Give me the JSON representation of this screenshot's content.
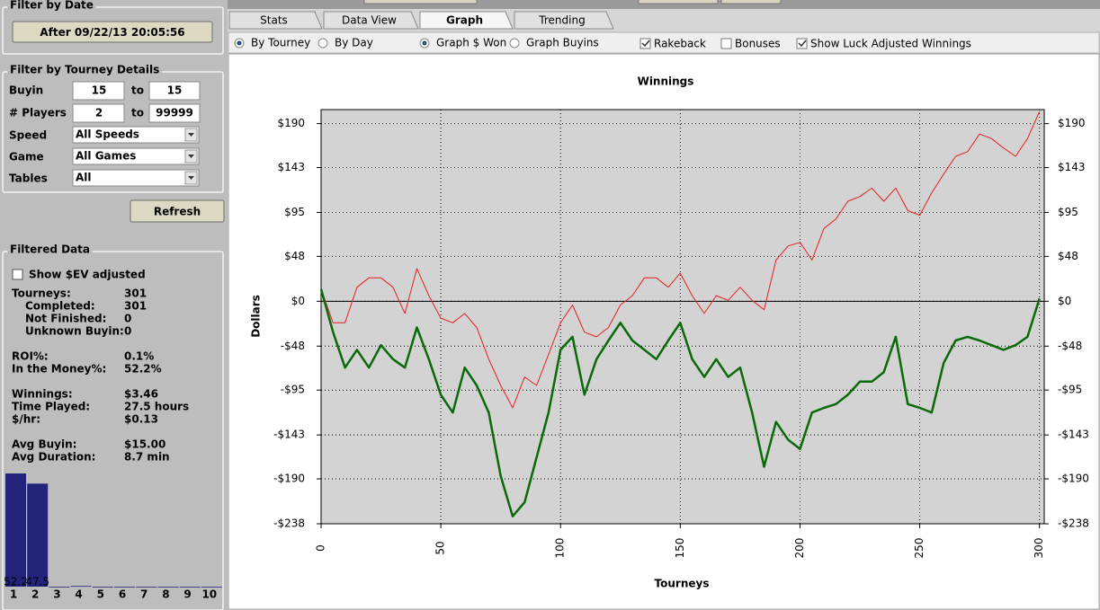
{
  "filter_by_date": {
    "title": "Filter by Date",
    "button": "After 09/22/13 20:05:56"
  },
  "filter_by_tourney": {
    "title": "Filter by Tourney Details",
    "ranges": [
      {
        "label": "Buyin",
        "from": "15",
        "to_label": "to",
        "to": "15"
      },
      {
        "label": "# Players",
        "from": "2",
        "to_label": "to",
        "to": "99999"
      }
    ],
    "dropdowns": [
      {
        "label": "Speed",
        "value": "All Speeds"
      },
      {
        "label": "Game",
        "value": "All Games"
      },
      {
        "label": "Tables",
        "value": "All"
      }
    ],
    "refresh": "Refresh"
  },
  "filtered_data": {
    "title": "Filtered Data",
    "checkbox": {
      "label": "Show $EV adjusted",
      "checked": false
    },
    "stats": [
      [
        {
          "label": "Tourneys:",
          "value": "301"
        },
        {
          "label": "Completed:",
          "value": "301",
          "sub": true
        },
        {
          "label": "Not Finished:",
          "value": "0",
          "sub": true
        },
        {
          "label": "Unknown Buyin:",
          "value": "0",
          "sub": true
        }
      ],
      [
        {
          "label": "ROI%:",
          "value": "0.1%"
        },
        {
          "label": "In the Money%:",
          "value": "52.2%"
        }
      ],
      [
        {
          "label": "Winnings:",
          "value": "$3.46"
        },
        {
          "label": "Time Played:",
          "value": "27.5 hours"
        },
        {
          "label": "$/hr:",
          "value": "$0.13"
        }
      ],
      [
        {
          "label": "Avg Buyin:",
          "value": "$15.00"
        },
        {
          "label": "Avg Duration:",
          "value": "8.7 min"
        }
      ]
    ],
    "mini_chart": {
      "type": "bar",
      "categories": [
        "1",
        "2",
        "3",
        "4",
        "5",
        "6",
        "7",
        "8",
        "9",
        "10"
      ],
      "values": [
        52.2,
        47.5,
        0,
        0.3,
        0,
        0,
        0,
        0,
        0,
        0
      ],
      "color": "#23237a"
    }
  },
  "tabs": [
    "Stats",
    "Data View",
    "Graph",
    "Trending"
  ],
  "active_tab": 2,
  "options": {
    "radios1": [
      {
        "label": "By Tourney",
        "checked": true
      },
      {
        "label": "By Day",
        "checked": false
      }
    ],
    "radios2": [
      {
        "label": "Graph $ Won",
        "checked": true
      },
      {
        "label": "Graph Buyins",
        "checked": false
      }
    ],
    "checkboxes": [
      {
        "label": "Rakeback",
        "checked": true
      },
      {
        "label": "Bonuses",
        "checked": false
      },
      {
        "label": "Show Luck Adjusted Winnings",
        "checked": true
      }
    ]
  },
  "chart_data": {
    "type": "line",
    "title": "Winnings",
    "xlabel": "Tourneys",
    "ylabel": "Dollars",
    "x": [
      0,
      5,
      10,
      15,
      20,
      25,
      30,
      35,
      40,
      45,
      50,
      55,
      60,
      65,
      70,
      75,
      80,
      85,
      90,
      95,
      100,
      105,
      110,
      115,
      120,
      125,
      130,
      135,
      140,
      145,
      150,
      155,
      160,
      165,
      170,
      175,
      180,
      185,
      190,
      195,
      200,
      205,
      210,
      215,
      220,
      225,
      230,
      235,
      240,
      245,
      250,
      255,
      260,
      265,
      270,
      275,
      280,
      285,
      290,
      295,
      300
    ],
    "series": [
      {
        "color": "#e82020",
        "width": 1,
        "values": [
          13,
          -23,
          -23,
          15,
          25,
          25,
          15,
          -13,
          35,
          6,
          -18,
          -23,
          -13,
          -28,
          -62,
          -90,
          -114,
          -81,
          -90,
          -57,
          -23,
          -4,
          -33,
          -38,
          -28,
          -4,
          6,
          25,
          25,
          15,
          30,
          6,
          -13,
          6,
          1,
          15,
          1,
          -9,
          44,
          59,
          63,
          44,
          78,
          88,
          107,
          112,
          121,
          107,
          121,
          97,
          92,
          116,
          136,
          155,
          160,
          179,
          174,
          164,
          155,
          174,
          203
        ]
      },
      {
        "color": "#0a6a0a",
        "width": 2.5,
        "values": [
          13,
          -33,
          -71,
          -52,
          -71,
          -47,
          -62,
          -71,
          -28,
          -62,
          -100,
          -119,
          -71,
          -90,
          -119,
          -187,
          -230,
          -215,
          -167,
          -119,
          -52,
          -38,
          -100,
          -62,
          -42,
          -23,
          -42,
          -52,
          -62,
          -42,
          -23,
          -62,
          -81,
          -62,
          -81,
          -71,
          -119,
          -177,
          -129,
          -148,
          -158,
          -119,
          -114,
          -110,
          -100,
          -86,
          -86,
          -76,
          -38,
          -110,
          -114,
          -119,
          -66,
          -42,
          -38,
          -42,
          -47,
          -52,
          -47,
          -38,
          3
        ]
      }
    ],
    "xlim": [
      0,
      302
    ],
    "ylim": [
      -238,
      205
    ],
    "xticks": [
      0,
      50,
      100,
      150,
      200,
      250,
      300
    ],
    "yticks": [
      {
        "value": -238,
        "label": "-$238"
      },
      {
        "value": -190,
        "label": "-$190"
      },
      {
        "value": -143,
        "label": "-$143"
      },
      {
        "value": -95,
        "label": "-$95"
      },
      {
        "value": -48,
        "label": "-$48"
      },
      {
        "value": 0,
        "label": "$0"
      },
      {
        "value": 48,
        "label": "$48"
      },
      {
        "value": 95,
        "label": "$95"
      },
      {
        "value": 143,
        "label": "$143"
      },
      {
        "value": 190,
        "label": "$190"
      }
    ],
    "grid": true
  }
}
